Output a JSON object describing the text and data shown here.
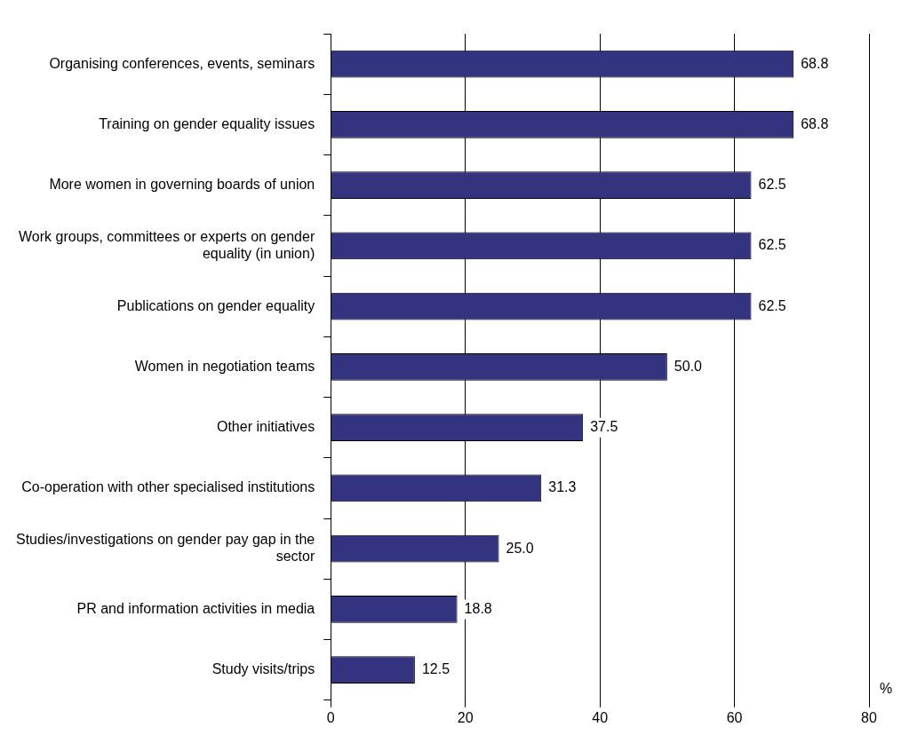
{
  "chart_data": {
    "type": "bar",
    "orientation": "horizontal",
    "xlabel": "%",
    "categories": [
      "Organising conferences, events, seminars",
      "Training on gender equality issues",
      "More women in governing boards of union",
      "Work groups, committees or experts on gender equality (in union)",
      "Publications on gender equality",
      "Women in negotiation teams",
      "Other initiatives",
      "Co-operation with other specialised institutions",
      "Studies/investigations on gender pay gap in the sector",
      "PR and information activities in media",
      "Study visits/trips"
    ],
    "values": [
      68.8,
      68.8,
      62.5,
      62.5,
      62.5,
      50.0,
      37.5,
      31.3,
      25.0,
      18.8,
      12.5
    ],
    "value_labels": [
      "68.8",
      "68.8",
      "62.5",
      "62.5",
      "62.5",
      "50.0",
      "37.5",
      "31.3",
      "25.0",
      "18.8",
      "12.5"
    ],
    "color": "#333380",
    "xlim": [
      0,
      80
    ],
    "xticks": [
      0,
      20,
      40,
      60,
      80
    ],
    "grid": "x",
    "legend": false
  }
}
